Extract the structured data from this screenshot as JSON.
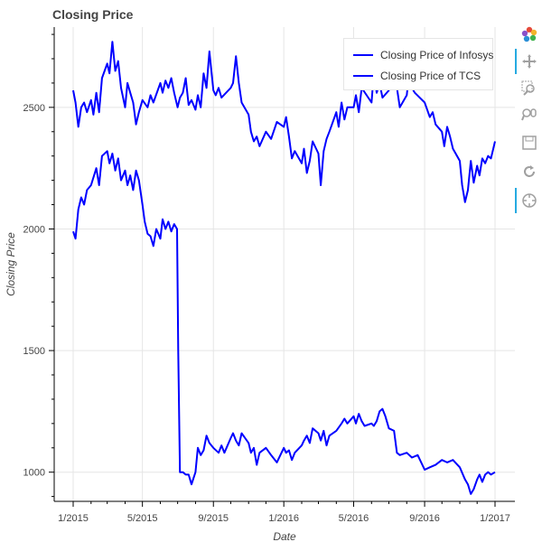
{
  "chart_data": {
    "type": "line",
    "title": "Closing Price",
    "xlabel": "Date",
    "ylabel": "Closing Price",
    "x_ticks": [
      "1/2015",
      "5/2015",
      "9/2015",
      "1/2016",
      "5/2016",
      "9/2016",
      "1/2017"
    ],
    "y_ticks": [
      1000,
      1500,
      2000,
      2500
    ],
    "xlim": [
      "2015-01-01",
      "2017-01-01"
    ],
    "ylim": [
      880,
      2830
    ],
    "grid": true,
    "legend_position": "top-right",
    "series": [
      {
        "name": "Closing Price of Infosys",
        "color": "#0000ff",
        "points": [
          [
            "2015-01-01",
            1990
          ],
          [
            "2015-01-05",
            1960
          ],
          [
            "2015-01-10",
            2080
          ],
          [
            "2015-01-15",
            2130
          ],
          [
            "2015-01-20",
            2100
          ],
          [
            "2015-01-25",
            2160
          ],
          [
            "2015-02-01",
            2180
          ],
          [
            "2015-02-10",
            2250
          ],
          [
            "2015-02-15",
            2180
          ],
          [
            "2015-02-20",
            2300
          ],
          [
            "2015-03-01",
            2320
          ],
          [
            "2015-03-05",
            2270
          ],
          [
            "2015-03-10",
            2310
          ],
          [
            "2015-03-15",
            2240
          ],
          [
            "2015-03-20",
            2290
          ],
          [
            "2015-03-25",
            2200
          ],
          [
            "2015-04-01",
            2240
          ],
          [
            "2015-04-05",
            2180
          ],
          [
            "2015-04-10",
            2220
          ],
          [
            "2015-04-15",
            2160
          ],
          [
            "2015-04-20",
            2240
          ],
          [
            "2015-04-25",
            2200
          ],
          [
            "2015-05-01",
            2100
          ],
          [
            "2015-05-05",
            2030
          ],
          [
            "2015-05-10",
            1980
          ],
          [
            "2015-05-15",
            1970
          ],
          [
            "2015-05-20",
            1930
          ],
          [
            "2015-05-25",
            2000
          ],
          [
            "2015-06-01",
            1960
          ],
          [
            "2015-06-05",
            2040
          ],
          [
            "2015-06-10",
            2000
          ],
          [
            "2015-06-15",
            2030
          ],
          [
            "2015-06-20",
            1990
          ],
          [
            "2015-06-25",
            2020
          ],
          [
            "2015-06-30",
            2000
          ],
          [
            "2015-07-02",
            1500
          ],
          [
            "2015-07-05",
            1000
          ],
          [
            "2015-07-10",
            1000
          ],
          [
            "2015-07-15",
            990
          ],
          [
            "2015-07-20",
            990
          ],
          [
            "2015-07-25",
            950
          ],
          [
            "2015-08-01",
            1000
          ],
          [
            "2015-08-05",
            1100
          ],
          [
            "2015-08-10",
            1070
          ],
          [
            "2015-08-15",
            1090
          ],
          [
            "2015-08-20",
            1150
          ],
          [
            "2015-08-25",
            1120
          ],
          [
            "2015-09-01",
            1100
          ],
          [
            "2015-09-10",
            1080
          ],
          [
            "2015-09-15",
            1110
          ],
          [
            "2015-09-20",
            1080
          ],
          [
            "2015-10-01",
            1140
          ],
          [
            "2015-10-05",
            1160
          ],
          [
            "2015-10-10",
            1130
          ],
          [
            "2015-10-15",
            1110
          ],
          [
            "2015-10-20",
            1160
          ],
          [
            "2015-11-01",
            1120
          ],
          [
            "2015-11-05",
            1080
          ],
          [
            "2015-11-10",
            1100
          ],
          [
            "2015-11-15",
            1030
          ],
          [
            "2015-11-20",
            1080
          ],
          [
            "2015-12-01",
            1100
          ],
          [
            "2015-12-10",
            1070
          ],
          [
            "2015-12-20",
            1040
          ],
          [
            "2016-01-01",
            1100
          ],
          [
            "2016-01-05",
            1080
          ],
          [
            "2016-01-10",
            1090
          ],
          [
            "2016-01-15",
            1050
          ],
          [
            "2016-01-20",
            1080
          ],
          [
            "2016-02-01",
            1110
          ],
          [
            "2016-02-05",
            1130
          ],
          [
            "2016-02-10",
            1150
          ],
          [
            "2016-02-15",
            1120
          ],
          [
            "2016-02-20",
            1180
          ],
          [
            "2016-03-01",
            1160
          ],
          [
            "2016-03-05",
            1130
          ],
          [
            "2016-03-10",
            1170
          ],
          [
            "2016-03-15",
            1110
          ],
          [
            "2016-03-20",
            1150
          ],
          [
            "2016-04-01",
            1170
          ],
          [
            "2016-04-10",
            1200
          ],
          [
            "2016-04-15",
            1220
          ],
          [
            "2016-04-20",
            1200
          ],
          [
            "2016-05-01",
            1230
          ],
          [
            "2016-05-05",
            1200
          ],
          [
            "2016-05-10",
            1240
          ],
          [
            "2016-05-15",
            1210
          ],
          [
            "2016-05-20",
            1190
          ],
          [
            "2016-06-01",
            1200
          ],
          [
            "2016-06-05",
            1190
          ],
          [
            "2016-06-10",
            1210
          ],
          [
            "2016-06-15",
            1250
          ],
          [
            "2016-06-20",
            1260
          ],
          [
            "2016-06-25",
            1230
          ],
          [
            "2016-07-01",
            1180
          ],
          [
            "2016-07-10",
            1170
          ],
          [
            "2016-07-15",
            1080
          ],
          [
            "2016-07-20",
            1070
          ],
          [
            "2016-08-01",
            1080
          ],
          [
            "2016-08-10",
            1060
          ],
          [
            "2016-08-20",
            1070
          ],
          [
            "2016-09-01",
            1010
          ],
          [
            "2016-09-10",
            1020
          ],
          [
            "2016-09-20",
            1030
          ],
          [
            "2016-10-01",
            1050
          ],
          [
            "2016-10-10",
            1040
          ],
          [
            "2016-10-20",
            1050
          ],
          [
            "2016-11-01",
            1020
          ],
          [
            "2016-11-10",
            970
          ],
          [
            "2016-11-15",
            950
          ],
          [
            "2016-11-20",
            910
          ],
          [
            "2016-11-25",
            930
          ],
          [
            "2016-12-01",
            970
          ],
          [
            "2016-12-05",
            990
          ],
          [
            "2016-12-10",
            960
          ],
          [
            "2016-12-15",
            990
          ],
          [
            "2016-12-20",
            1000
          ],
          [
            "2016-12-25",
            990
          ],
          [
            "2017-01-01",
            1000
          ]
        ]
      },
      {
        "name": "Closing Price of TCS",
        "color": "#0000ff",
        "points": [
          [
            "2015-01-01",
            2570
          ],
          [
            "2015-01-05",
            2520
          ],
          [
            "2015-01-10",
            2420
          ],
          [
            "2015-01-15",
            2500
          ],
          [
            "2015-01-20",
            2520
          ],
          [
            "2015-01-25",
            2480
          ],
          [
            "2015-02-01",
            2530
          ],
          [
            "2015-02-05",
            2470
          ],
          [
            "2015-02-10",
            2560
          ],
          [
            "2015-02-15",
            2480
          ],
          [
            "2015-02-20",
            2620
          ],
          [
            "2015-03-01",
            2680
          ],
          [
            "2015-03-05",
            2640
          ],
          [
            "2015-03-10",
            2770
          ],
          [
            "2015-03-15",
            2650
          ],
          [
            "2015-03-20",
            2690
          ],
          [
            "2015-03-25",
            2580
          ],
          [
            "2015-04-01",
            2500
          ],
          [
            "2015-04-05",
            2600
          ],
          [
            "2015-04-10",
            2560
          ],
          [
            "2015-04-15",
            2520
          ],
          [
            "2015-04-20",
            2430
          ],
          [
            "2015-04-25",
            2480
          ],
          [
            "2015-05-01",
            2530
          ],
          [
            "2015-05-10",
            2500
          ],
          [
            "2015-05-15",
            2550
          ],
          [
            "2015-05-20",
            2520
          ],
          [
            "2015-06-01",
            2600
          ],
          [
            "2015-06-05",
            2560
          ],
          [
            "2015-06-10",
            2610
          ],
          [
            "2015-06-15",
            2580
          ],
          [
            "2015-06-20",
            2620
          ],
          [
            "2015-06-25",
            2560
          ],
          [
            "2015-07-01",
            2500
          ],
          [
            "2015-07-05",
            2540
          ],
          [
            "2015-07-10",
            2560
          ],
          [
            "2015-07-15",
            2620
          ],
          [
            "2015-07-20",
            2510
          ],
          [
            "2015-07-25",
            2530
          ],
          [
            "2015-08-01",
            2490
          ],
          [
            "2015-08-05",
            2550
          ],
          [
            "2015-08-10",
            2500
          ],
          [
            "2015-08-15",
            2640
          ],
          [
            "2015-08-20",
            2580
          ],
          [
            "2015-08-25",
            2730
          ],
          [
            "2015-09-01",
            2570
          ],
          [
            "2015-09-05",
            2550
          ],
          [
            "2015-09-10",
            2580
          ],
          [
            "2015-09-15",
            2540
          ],
          [
            "2015-10-01",
            2580
          ],
          [
            "2015-10-05",
            2600
          ],
          [
            "2015-10-10",
            2710
          ],
          [
            "2015-10-15",
            2600
          ],
          [
            "2015-10-20",
            2520
          ],
          [
            "2015-11-01",
            2470
          ],
          [
            "2015-11-05",
            2400
          ],
          [
            "2015-11-10",
            2360
          ],
          [
            "2015-11-15",
            2380
          ],
          [
            "2015-11-20",
            2340
          ],
          [
            "2015-12-01",
            2400
          ],
          [
            "2015-12-10",
            2370
          ],
          [
            "2015-12-20",
            2440
          ],
          [
            "2016-01-01",
            2420
          ],
          [
            "2016-01-05",
            2460
          ],
          [
            "2016-01-10",
            2380
          ],
          [
            "2016-01-15",
            2290
          ],
          [
            "2016-01-20",
            2320
          ],
          [
            "2016-02-01",
            2270
          ],
          [
            "2016-02-05",
            2330
          ],
          [
            "2016-02-10",
            2230
          ],
          [
            "2016-02-15",
            2280
          ],
          [
            "2016-02-20",
            2360
          ],
          [
            "2016-03-01",
            2310
          ],
          [
            "2016-03-05",
            2180
          ],
          [
            "2016-03-10",
            2320
          ],
          [
            "2016-03-15",
            2370
          ],
          [
            "2016-03-20",
            2400
          ],
          [
            "2016-04-01",
            2480
          ],
          [
            "2016-04-05",
            2420
          ],
          [
            "2016-04-10",
            2520
          ],
          [
            "2016-04-15",
            2450
          ],
          [
            "2016-04-20",
            2500
          ],
          [
            "2016-05-01",
            2500
          ],
          [
            "2016-05-05",
            2550
          ],
          [
            "2016-05-10",
            2480
          ],
          [
            "2016-05-15",
            2580
          ],
          [
            "2016-06-01",
            2520
          ],
          [
            "2016-06-05",
            2640
          ],
          [
            "2016-06-10",
            2560
          ],
          [
            "2016-06-15",
            2600
          ],
          [
            "2016-06-20",
            2540
          ],
          [
            "2016-07-01",
            2570
          ],
          [
            "2016-07-05",
            2620
          ],
          [
            "2016-07-10",
            2680
          ],
          [
            "2016-07-15",
            2580
          ],
          [
            "2016-07-20",
            2500
          ],
          [
            "2016-08-01",
            2550
          ],
          [
            "2016-08-05",
            2640
          ],
          [
            "2016-08-10",
            2580
          ],
          [
            "2016-08-15",
            2560
          ],
          [
            "2016-09-01",
            2520
          ],
          [
            "2016-09-10",
            2460
          ],
          [
            "2016-09-15",
            2480
          ],
          [
            "2016-09-20",
            2430
          ],
          [
            "2016-10-01",
            2400
          ],
          [
            "2016-10-05",
            2340
          ],
          [
            "2016-10-10",
            2420
          ],
          [
            "2016-10-15",
            2380
          ],
          [
            "2016-10-20",
            2330
          ],
          [
            "2016-11-01",
            2280
          ],
          [
            "2016-11-05",
            2180
          ],
          [
            "2016-11-10",
            2110
          ],
          [
            "2016-11-15",
            2160
          ],
          [
            "2016-11-20",
            2280
          ],
          [
            "2016-11-25",
            2190
          ],
          [
            "2016-12-01",
            2260
          ],
          [
            "2016-12-05",
            2220
          ],
          [
            "2016-12-10",
            2290
          ],
          [
            "2016-12-15",
            2270
          ],
          [
            "2016-12-20",
            2300
          ],
          [
            "2016-12-25",
            2290
          ],
          [
            "2017-01-01",
            2360
          ]
        ]
      }
    ]
  },
  "toolbar": {
    "icons": [
      "bokeh-logo-icon",
      "pan-icon",
      "box-zoom-icon",
      "wheel-zoom-icon",
      "save-icon",
      "reset-icon",
      "hover-icon"
    ]
  }
}
